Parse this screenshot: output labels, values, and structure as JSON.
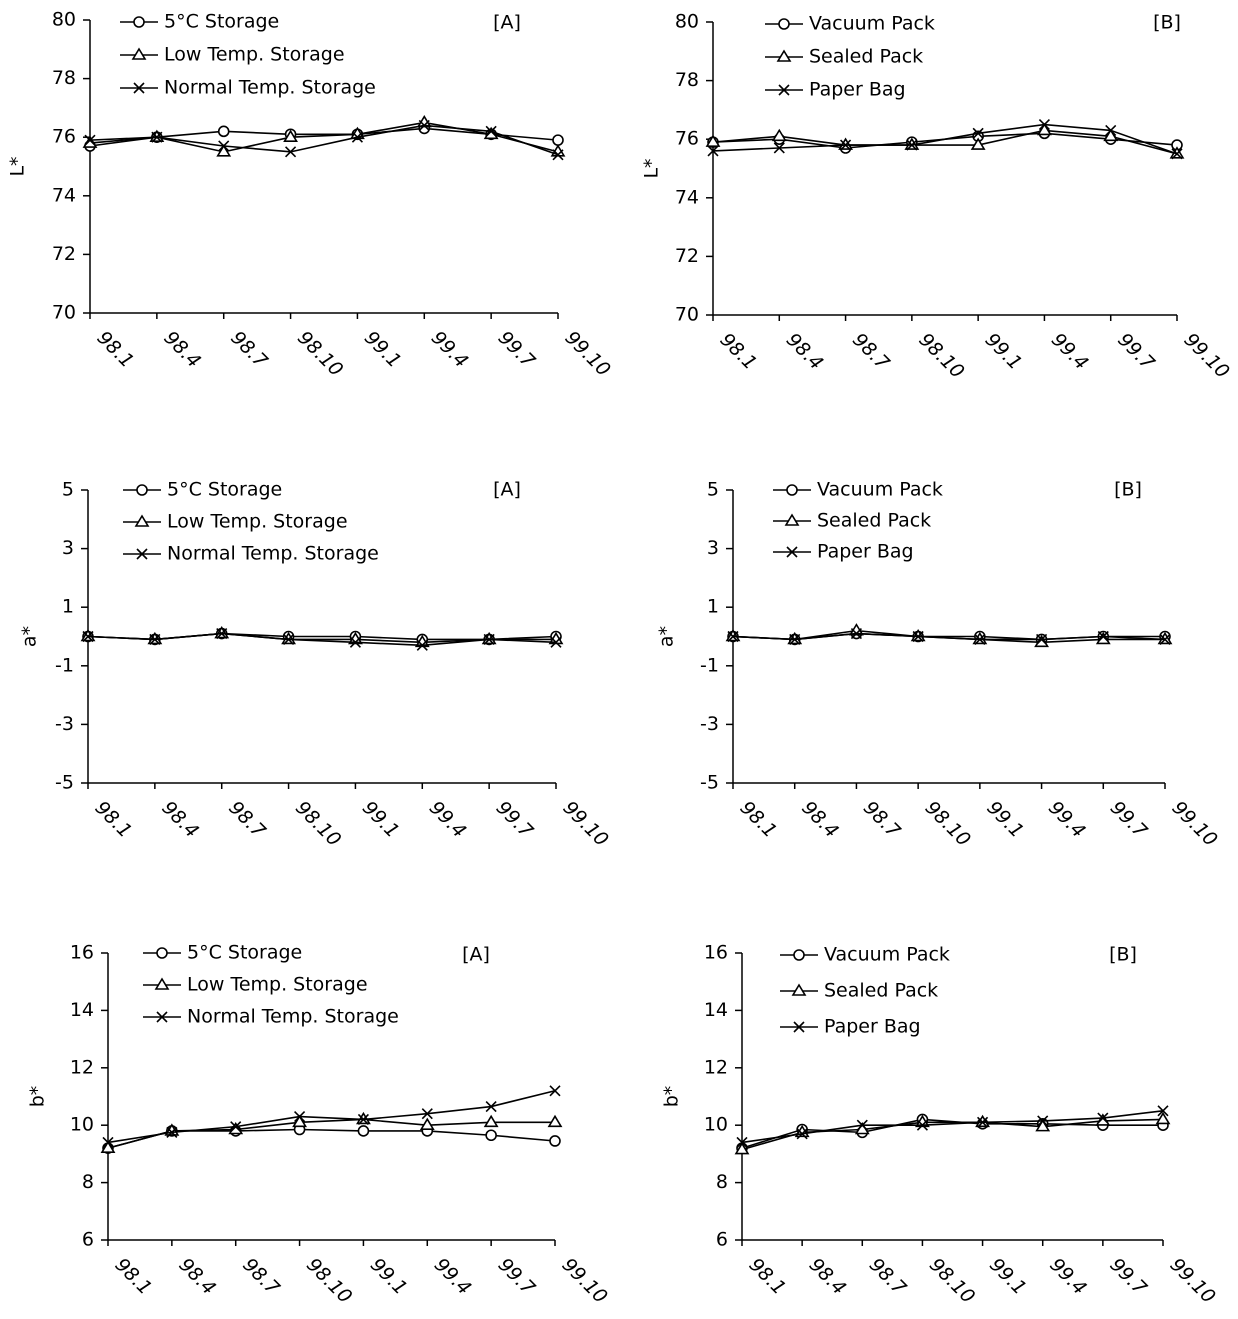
{
  "chart_data": [
    {
      "type": "line",
      "ylabel": "L*",
      "annotation": "[A]",
      "categories": [
        "98.1",
        "98.4",
        "98.7",
        "98.10",
        "99.1",
        "99.4",
        "99.7",
        "99.10"
      ],
      "ylim": [
        70,
        80
      ],
      "yticks": [
        70,
        72,
        74,
        76,
        78,
        80
      ],
      "series": [
        {
          "name": "5°C Storage",
          "color": "#000000",
          "marker": "circle",
          "values": [
            75.7,
            76.0,
            76.2,
            76.1,
            76.1,
            76.3,
            76.1,
            75.9
          ]
        },
        {
          "name": "Low Temp. Storage",
          "color": "#000000",
          "marker": "triangle",
          "values": [
            75.8,
            76.0,
            75.5,
            76.0,
            76.1,
            76.5,
            76.1,
            75.5
          ]
        },
        {
          "name": "Normal Temp. Storage",
          "color": "#000000",
          "marker": "x",
          "values": [
            75.9,
            76.0,
            75.7,
            75.5,
            76.0,
            76.4,
            76.2,
            75.4
          ]
        }
      ]
    },
    {
      "type": "line",
      "ylabel": "L*",
      "annotation": "[B]",
      "categories": [
        "98.1",
        "98.4",
        "98.7",
        "98.10",
        "99.1",
        "99.4",
        "99.7",
        "99.10"
      ],
      "ylim": [
        70,
        80
      ],
      "yticks": [
        70,
        72,
        74,
        76,
        78,
        80
      ],
      "series": [
        {
          "name": "Vacuum Pack",
          "color": "#000000",
          "marker": "circle",
          "values": [
            75.9,
            76.0,
            75.7,
            75.9,
            76.1,
            76.2,
            76.0,
            75.8
          ]
        },
        {
          "name": "Sealed Pack",
          "color": "#000000",
          "marker": "triangle",
          "values": [
            75.9,
            76.1,
            75.8,
            75.8,
            75.8,
            76.3,
            76.1,
            75.5
          ]
        },
        {
          "name": "Paper Bag",
          "color": "#000000",
          "marker": "x",
          "values": [
            75.6,
            75.7,
            75.8,
            75.8,
            76.2,
            76.5,
            76.3,
            75.5
          ]
        }
      ]
    },
    {
      "type": "line",
      "ylabel": "a*",
      "annotation": "[A]",
      "categories": [
        "98.1",
        "98.4",
        "98.7",
        "98.10",
        "99.1",
        "99.4",
        "99.7",
        "99.10"
      ],
      "ylim": [
        -5,
        5
      ],
      "yticks": [
        -5,
        -3,
        -1,
        1,
        3,
        5
      ],
      "series": [
        {
          "name": "5°C Storage",
          "color": "#000000",
          "marker": "circle",
          "values": [
            0,
            -0.1,
            0.1,
            0,
            0,
            -0.1,
            -0.1,
            0
          ]
        },
        {
          "name": "Low Temp. Storage",
          "color": "#000000",
          "marker": "triangle",
          "values": [
            0,
            -0.1,
            0.1,
            -0.1,
            -0.1,
            -0.2,
            -0.1,
            -0.1
          ]
        },
        {
          "name": "Normal Temp. Storage",
          "color": "#000000",
          "marker": "x",
          "values": [
            0,
            -0.1,
            0.1,
            -0.1,
            -0.2,
            -0.3,
            -0.1,
            -0.2
          ]
        }
      ]
    },
    {
      "type": "line",
      "ylabel": "a*",
      "annotation": "[B]",
      "categories": [
        "98.1",
        "98.4",
        "98.7",
        "98.10",
        "99.1",
        "99.4",
        "99.7",
        "99.10"
      ],
      "ylim": [
        -5,
        5
      ],
      "yticks": [
        -5,
        -3,
        -1,
        1,
        3,
        5
      ],
      "series": [
        {
          "name": "Vacuum Pack",
          "color": "#000000",
          "marker": "circle",
          "values": [
            0,
            -0.1,
            0.1,
            0,
            0,
            -0.1,
            0,
            0
          ]
        },
        {
          "name": "Sealed Pack",
          "color": "#000000",
          "marker": "triangle",
          "values": [
            0,
            -0.1,
            0.2,
            0,
            -0.1,
            -0.2,
            -0.1,
            -0.1
          ]
        },
        {
          "name": "Paper Bag",
          "color": "#000000",
          "marker": "x",
          "values": [
            0,
            -0.1,
            0.1,
            0,
            -0.1,
            -0.1,
            0,
            -0.1
          ]
        }
      ]
    },
    {
      "type": "line",
      "ylabel": "b*",
      "annotation": "[A]",
      "categories": [
        "98.1",
        "98.4",
        "98.7",
        "98.10",
        "99.1",
        "99.4",
        "99.7",
        "99.10"
      ],
      "ylim": [
        6,
        16
      ],
      "yticks": [
        6,
        8,
        10,
        12,
        14,
        16
      ],
      "series": [
        {
          "name": "5°C Storage",
          "color": "#000000",
          "marker": "circle",
          "values": [
            9.2,
            9.8,
            9.8,
            9.85,
            9.8,
            9.8,
            9.65,
            9.45
          ]
        },
        {
          "name": "Low Temp. Storage",
          "color": "#000000",
          "marker": "triangle",
          "values": [
            9.2,
            9.8,
            9.85,
            10.1,
            10.2,
            10.0,
            10.1,
            10.1
          ]
        },
        {
          "name": "Normal Temp. Storage",
          "color": "#000000",
          "marker": "x",
          "values": [
            9.4,
            9.75,
            9.95,
            10.3,
            10.2,
            10.4,
            10.65,
            11.2
          ]
        }
      ]
    },
    {
      "type": "line",
      "ylabel": "b*",
      "annotation": "[B]",
      "categories": [
        "98.1",
        "98.4",
        "98.7",
        "98.10",
        "99.1",
        "99.4",
        "99.7",
        "99.10"
      ],
      "ylim": [
        6,
        16
      ],
      "yticks": [
        6,
        8,
        10,
        12,
        14,
        16
      ],
      "series": [
        {
          "name": "Vacuum Pack",
          "color": "#000000",
          "marker": "circle",
          "values": [
            9.2,
            9.85,
            9.75,
            10.2,
            10.05,
            10.05,
            10.0,
            10.0
          ]
        },
        {
          "name": "Sealed Pack",
          "color": "#000000",
          "marker": "triangle",
          "values": [
            9.15,
            9.75,
            9.85,
            10.1,
            10.1,
            9.95,
            10.15,
            10.2
          ]
        },
        {
          "name": "Paper Bag",
          "color": "#000000",
          "marker": "x",
          "values": [
            9.4,
            9.7,
            10.0,
            10.0,
            10.1,
            10.15,
            10.25,
            10.5
          ]
        }
      ]
    }
  ]
}
